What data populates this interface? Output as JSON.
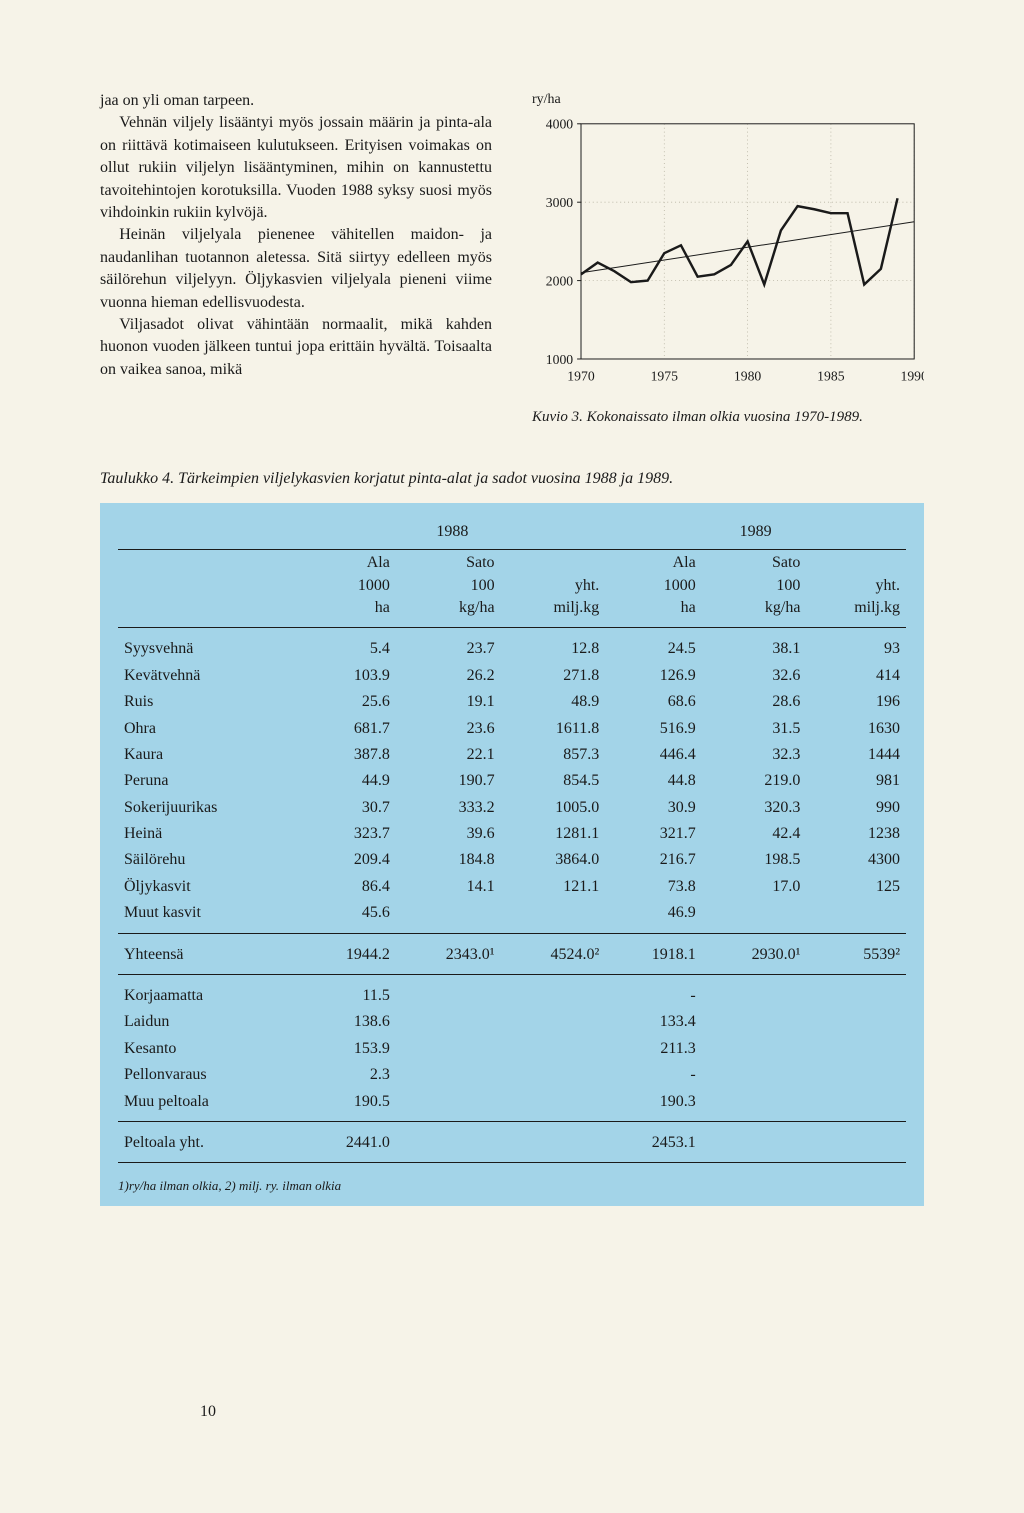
{
  "paragraphs": {
    "p1": "jaa on yli oman tarpeen.",
    "p2": "Vehnän viljely lisääntyi myös jossain määrin ja pinta-ala on riittävä kotimaiseen kulutukseen. Erityisen voimakas on ollut rukiin viljelyn lisääntyminen, mihin on kannustettu tavoitehintojen korotuksilla. Vuoden 1988 syksy suosi myös vihdoinkin rukiin kylvöjä.",
    "p3": "Heinän viljelyala pienenee vähitellen maidon- ja naudanlihan tuotannon aletessa. Sitä siirtyy edelleen myös säilörehun viljelyyn. Öljykasvien viljelyala pieneni viime vuonna hieman edellisvuodesta.",
    "p4": "Viljasadot olivat vähintään normaalit, mikä kahden huonon vuoden jälkeen tuntui jopa erittäin hyvältä. Toisaalta on vaikea sanoa, mikä"
  },
  "chart": {
    "y_label": "ry/ha",
    "type": "line",
    "ylim": [
      1000,
      4000
    ],
    "yticks": [
      1000,
      2000,
      3000,
      4000
    ],
    "xlim": [
      1970,
      1990
    ],
    "xticks": [
      1970,
      1975,
      1980,
      1985,
      1990
    ],
    "series": {
      "years": [
        1970,
        1971,
        1972,
        1973,
        1974,
        1975,
        1976,
        1977,
        1978,
        1979,
        1980,
        1981,
        1982,
        1983,
        1984,
        1985,
        1986,
        1987,
        1988,
        1989
      ],
      "values": [
        2080,
        2230,
        2120,
        1980,
        2000,
        2350,
        2450,
        2050,
        2080,
        2200,
        2500,
        1950,
        2640,
        2950,
        2910,
        2860,
        2860,
        1950,
        2150,
        3050
      ]
    },
    "trend": {
      "y_start": 2100,
      "y_end": 2750
    },
    "line_color": "#1a1a1a",
    "line_width": 2.5,
    "trend_width": 1,
    "grid_color": "#b6b2a1",
    "background_color": "#f6f3e8",
    "border_color": "#1a1a1a",
    "tick_fontsize": 14
  },
  "chart_caption": "Kuvio 3. Kokonaissato ilman olkia vuosina 1970-1989.",
  "table_caption": "Taulukko 4. Tärkeimpien viljelykasvien korjatut pinta-alat ja sadot vuosina 1988 ja 1989.",
  "table": {
    "background_color": "#a3d4e8",
    "years": [
      "1988",
      "1989"
    ],
    "col_headers": {
      "c1": "Ala\n1000\nha",
      "c2": "Sato\n100\nkg/ha",
      "c3": "yht.\nmilj.kg",
      "c4": "Ala\n1000\nha",
      "c5": "Sato\n100\nkg/ha",
      "c6": "yht.\nmilj.kg"
    },
    "rows": [
      {
        "name": "Syysvehnä",
        "v": [
          "5.4",
          "23.7",
          "12.8",
          "24.5",
          "38.1",
          "93"
        ]
      },
      {
        "name": "Kevätvehnä",
        "v": [
          "103.9",
          "26.2",
          "271.8",
          "126.9",
          "32.6",
          "414"
        ]
      },
      {
        "name": "Ruis",
        "v": [
          "25.6",
          "19.1",
          "48.9",
          "68.6",
          "28.6",
          "196"
        ]
      },
      {
        "name": "Ohra",
        "v": [
          "681.7",
          "23.6",
          "1611.8",
          "516.9",
          "31.5",
          "1630"
        ]
      },
      {
        "name": "Kaura",
        "v": [
          "387.8",
          "22.1",
          "857.3",
          "446.4",
          "32.3",
          "1444"
        ]
      },
      {
        "name": "Peruna",
        "v": [
          "44.9",
          "190.7",
          "854.5",
          "44.8",
          "219.0",
          "981"
        ]
      },
      {
        "name": "Sokerijuurikas",
        "v": [
          "30.7",
          "333.2",
          "1005.0",
          "30.9",
          "320.3",
          "990"
        ]
      },
      {
        "name": "Heinä",
        "v": [
          "323.7",
          "39.6",
          "1281.1",
          "321.7",
          "42.4",
          "1238"
        ]
      },
      {
        "name": "Säilörehu",
        "v": [
          "209.4",
          "184.8",
          "3864.0",
          "216.7",
          "198.5",
          "4300"
        ]
      },
      {
        "name": "Öljykasvit",
        "v": [
          "86.4",
          "14.1",
          "121.1",
          "73.8",
          "17.0",
          "125"
        ]
      },
      {
        "name": "Muut kasvit",
        "v": [
          "45.6",
          "",
          "",
          "46.9",
          "",
          ""
        ]
      }
    ],
    "total_row": {
      "name": "Yhteensä",
      "v": [
        "1944.2",
        "2343.0¹",
        "4524.0²",
        "1918.1",
        "2930.0¹",
        "5539²"
      ]
    },
    "rows2": [
      {
        "name": "Korjaamatta",
        "v": [
          "11.5",
          "",
          "",
          "-",
          "",
          ""
        ]
      },
      {
        "name": "Laidun",
        "v": [
          "138.6",
          "",
          "",
          "133.4",
          "",
          ""
        ]
      },
      {
        "name": "Kesanto",
        "v": [
          "153.9",
          "",
          "",
          "211.3",
          "",
          ""
        ]
      },
      {
        "name": "Pellonvaraus",
        "v": [
          "2.3",
          "",
          "",
          "-",
          "",
          ""
        ]
      },
      {
        "name": "Muu peltoala",
        "v": [
          "190.5",
          "",
          "",
          "190.3",
          "",
          ""
        ]
      }
    ],
    "grand_row": {
      "name": "Peltoala yht.",
      "v": [
        "2441.0",
        "",
        "",
        "2453.1",
        "",
        ""
      ]
    },
    "footnote": "1)ry/ha ilman olkia, 2) milj. ry. ilman olkia"
  },
  "page_number": "10"
}
